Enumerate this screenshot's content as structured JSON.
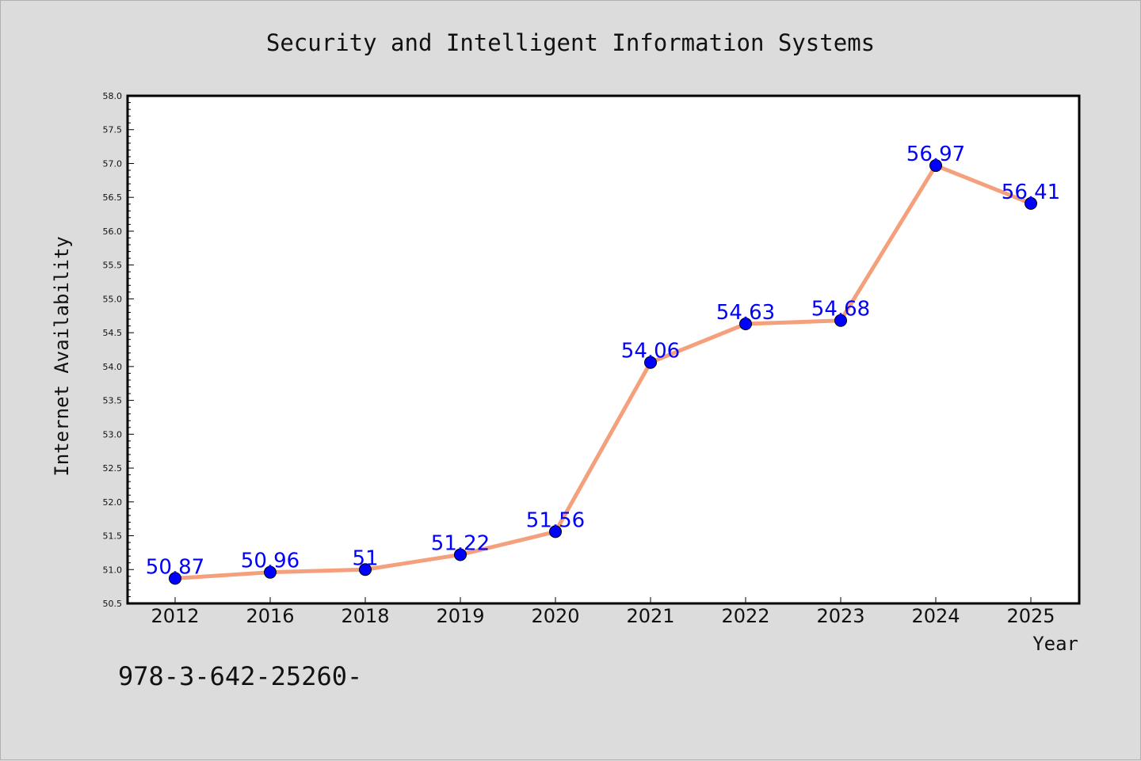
{
  "chart_data": {
    "type": "line",
    "title": "Security and Intelligent Information Systems",
    "xlabel": "Year",
    "ylabel": "Internet Availability",
    "categories": [
      "2012",
      "2016",
      "2018",
      "2019",
      "2020",
      "2021",
      "2022",
      "2023",
      "2024",
      "2025"
    ],
    "series": [
      {
        "values": [
          50.87,
          50.96,
          51,
          51.22,
          51.56,
          54.06,
          54.63,
          54.68,
          56.97,
          56.41
        ],
        "data_labels": [
          "50.87",
          "50.96",
          "51",
          "51.22",
          "51.56",
          "54.06",
          "54.63",
          "54.68",
          "56.97",
          "56.41"
        ],
        "line_color": "#f4a07c",
        "marker_color": "#0000ff"
      }
    ],
    "ylim": [
      50.5,
      58.0
    ],
    "yticks": [
      "50.5",
      "51.0",
      "51.5",
      "52.0",
      "52.5",
      "53.0",
      "53.5",
      "54.0",
      "54.5",
      "55.0",
      "55.5",
      "56.0",
      "56.5",
      "57.0",
      "57.5",
      "58.0"
    ],
    "grid": false,
    "legend": "none",
    "colors": {
      "background": "#dcdcdc",
      "plot_background": "#ffffff",
      "line": "#f4a07c",
      "marker": "#0000ff",
      "data_label": "#0000ff"
    }
  },
  "footnote": "978-3-642-25260-"
}
